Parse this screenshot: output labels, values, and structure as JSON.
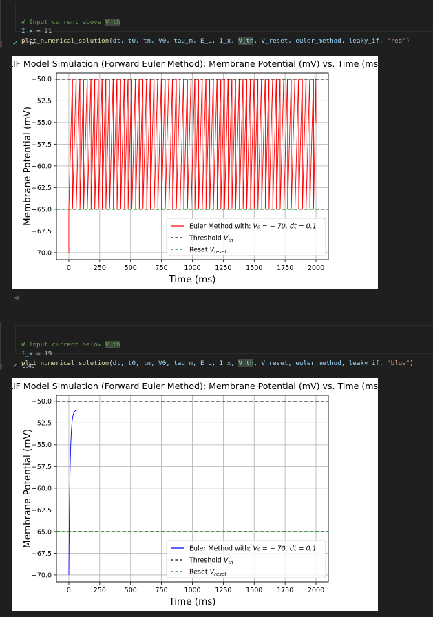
{
  "cells": [
    {
      "comment_prefix": "# Input current above ",
      "comment_hl": "V_th",
      "assign_var": "I_x",
      "assign_op": " = ",
      "assign_val": "21",
      "call_fn": "plot_numerical_solution",
      "call_open": "(",
      "call_args": "dt, t0, tn, V0, tau_m, E_L, I_x, ",
      "call_hl": "V_th",
      "call_args2": ", V_reset, euler_method, leaky_if, ",
      "call_str": "\"red\"",
      "call_close": ")",
      "status_time": "0.3s"
    },
    {
      "comment_prefix": "# Input current below ",
      "comment_hl": "V_th",
      "assign_var": "I_x",
      "assign_op": " = ",
      "assign_val": "19",
      "call_fn": "plot_numerical_solution",
      "call_open": "(",
      "call_args": "dt, t0, tn, V0, tau_m, E_L, I_x, ",
      "call_hl": "V_th",
      "call_args2": ", V_reset, euler_method, leaky_if, ",
      "call_str": "\"blue\"",
      "call_close": ")",
      "status_time": "0.4s"
    }
  ],
  "chart_data": [
    {
      "type": "line",
      "title": "LIF Model Simulation (Forward Euler Method): Membrane Potential (mV) vs. Time (ms)",
      "xlabel": "Time (ms)",
      "ylabel": "Membrane Potential (mV)",
      "xlim": [
        -100,
        2100
      ],
      "ylim": [
        -70.8,
        -49.3
      ],
      "xticks": [
        "0",
        "250",
        "500",
        "750",
        "1000",
        "1250",
        "1500",
        "1750",
        "2000"
      ],
      "yticks": [
        "−50.0",
        "−52.5",
        "−55.0",
        "−57.5",
        "−60.0",
        "−62.5",
        "−65.0",
        "−67.5",
        "−70.0"
      ],
      "grid": true,
      "legend_position": "bottom-right",
      "series": [
        {
          "name": "Euler Method with: V0 = −70, dt = 0.1",
          "color": "#ff0000",
          "style": "solid",
          "description_values": {
            "initial": -70,
            "reset": -65,
            "threshold": -50,
            "spike_period_ms": 30,
            "t_end": 2000
          }
        },
        {
          "name": "Threshold Vth",
          "color": "#000000",
          "style": "dashed",
          "y": -50
        },
        {
          "name": "Reset Vreset",
          "color": "#008000",
          "style": "dashed",
          "y": -65
        }
      ],
      "legend": {
        "entry1_pre": "Euler Method with: ",
        "entry1_math": "V₀ = − 70, dt = 0.1",
        "entry2_pre": "Threshold ",
        "entry2_math": "V",
        "entry2_sub": "th",
        "entry3_pre": "Reset ",
        "entry3_math": "V",
        "entry3_sub": "reset"
      }
    },
    {
      "type": "line",
      "title": "LIF Model Simulation (Forward Euler Method): Membrane Potential (mV) vs. Time (ms)",
      "xlabel": "Time (ms)",
      "ylabel": "Membrane Potential (mV)",
      "xlim": [
        -100,
        2100
      ],
      "ylim": [
        -70.8,
        -49.3
      ],
      "xticks": [
        "0",
        "250",
        "500",
        "750",
        "1000",
        "1250",
        "1500",
        "1750",
        "2000"
      ],
      "yticks": [
        "−50.0",
        "−52.5",
        "−55.0",
        "−57.5",
        "−60.0",
        "−62.5",
        "−65.0",
        "−67.5",
        "−70.0"
      ],
      "grid": true,
      "legend_position": "bottom-right",
      "series": [
        {
          "name": "Euler Method with: V0 = −70, dt = 0.1",
          "color": "#0000ff",
          "style": "solid",
          "description_values": {
            "initial": -70,
            "steady_state": -51,
            "tau_ms": 10,
            "t_end": 2000
          }
        },
        {
          "name": "Threshold Vth",
          "color": "#000000",
          "style": "dashed",
          "y": -50
        },
        {
          "name": "Reset Vreset",
          "color": "#008000",
          "style": "dashed",
          "y": -65
        }
      ],
      "legend": {
        "entry1_pre": "Euler Method with: ",
        "entry1_math": "V₀ = − 70, dt = 0.1",
        "entry2_pre": "Threshold ",
        "entry2_math": "V",
        "entry2_sub": "th",
        "entry3_pre": "Reset ",
        "entry3_math": "V",
        "entry3_sub": "reset"
      }
    }
  ]
}
